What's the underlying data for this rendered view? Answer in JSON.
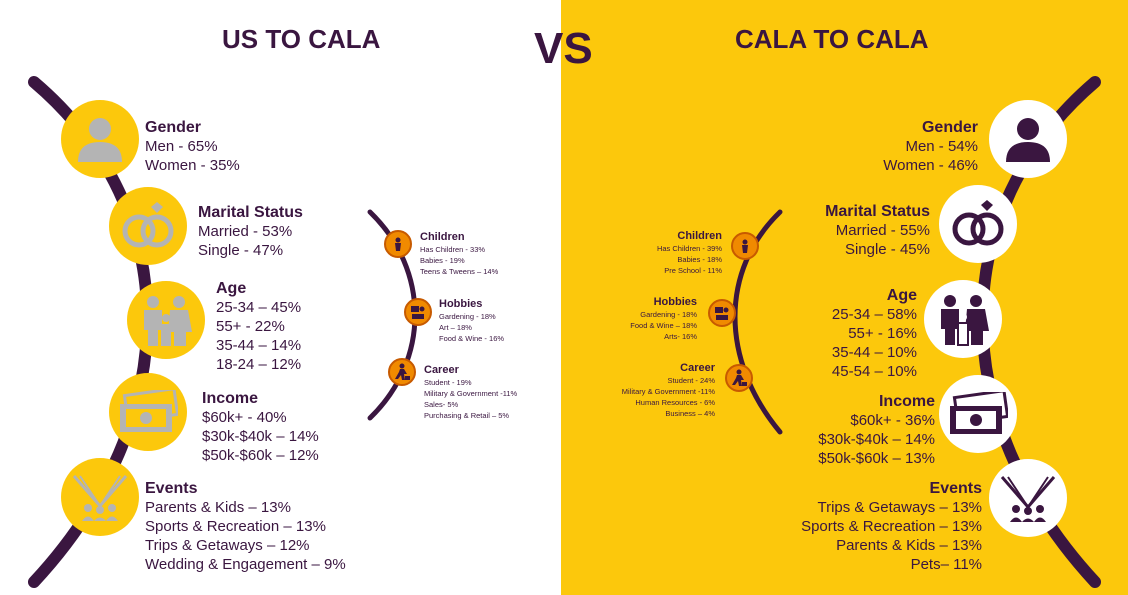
{
  "left": {
    "title": "US TO CALA",
    "blocks": [
      {
        "heading": "Gender",
        "lines": [
          "Men - 65%",
          "Women - 35%"
        ],
        "icon": "person-icon"
      },
      {
        "heading": "Marital Status",
        "lines": [
          "Married - 53%",
          "Single - 47%"
        ],
        "icon": "rings-icon"
      },
      {
        "heading": "Age",
        "lines": [
          "25-34 – 45%",
          "55+ - 22%",
          "35-44 – 14%",
          "18-24 – 12%"
        ],
        "icon": "family-icon"
      },
      {
        "heading": "Income",
        "lines": [
          "$60k+ - 40%",
          "$30k-$40k – 14%",
          "$50k-$60k – 12%"
        ],
        "icon": "money-icon"
      },
      {
        "heading": "Events",
        "lines": [
          "Parents & Kids – 13%",
          "Sports & Recreation – 13%",
          "Trips & Getaways – 12%",
          "Wedding & Engagement – 9%"
        ],
        "icon": "crowd-icon"
      }
    ],
    "small": [
      {
        "heading": "Children",
        "lines": [
          "Has Children - 33%",
          "Babies - 19%",
          "Teens & Tweens – 14%"
        ],
        "icon": "child-icon"
      },
      {
        "heading": "Hobbies",
        "lines": [
          "Gardening - 18%",
          "Art – 18%",
          "Food & Wine - 16%"
        ],
        "icon": "hobbies-icon"
      },
      {
        "heading": "Career",
        "lines": [
          "Student - 19%",
          "Military & Government -11%",
          "Sales- 5%",
          "Purchasing & Retail – 5%"
        ],
        "icon": "career-icon"
      }
    ]
  },
  "vs": "VS",
  "right": {
    "title": "CALA TO CALA",
    "blocks": [
      {
        "heading": "Gender",
        "lines": [
          "Men - 54%",
          "Women - 46%"
        ],
        "icon": "person-icon"
      },
      {
        "heading": "Marital Status",
        "lines": [
          "Married - 55%",
          "Single - 45%"
        ],
        "icon": "rings-icon"
      },
      {
        "heading": "Age",
        "lines": [
          "25-34 – 58%",
          "55+ - 16%",
          "35-44 – 10%",
          "45-54 – 10%"
        ],
        "icon": "family-icon"
      },
      {
        "heading": "Income",
        "lines": [
          "$60k+ - 36%",
          "$30k-$40k – 14%",
          "$50k-$60k – 13%"
        ],
        "icon": "money-icon"
      },
      {
        "heading": "Events",
        "lines": [
          "Trips & Getaways – 13%",
          "Sports & Recreation – 13%",
          "Parents & Kids – 13%",
          "Pets– 11%"
        ],
        "icon": "crowd-icon"
      }
    ],
    "small": [
      {
        "heading": "Children",
        "lines": [
          "Has Children - 39%",
          "Babies - 18%",
          "Pre School - 11%"
        ],
        "icon": "child-icon"
      },
      {
        "heading": "Hobbies",
        "lines": [
          "Gardening - 18%",
          "Food & Wine – 18%",
          "Arts- 16%"
        ],
        "icon": "hobbies-icon"
      },
      {
        "heading": "Career",
        "lines": [
          "Student - 24%",
          "Military & Government -11%",
          "Human Resources - 6%",
          "Business – 4%"
        ],
        "icon": "career-icon"
      }
    ]
  },
  "colors": {
    "purple": "#3a1640",
    "yellow": "#fcc80c",
    "icon_gray": "#b4b4b4",
    "orange": "#f08a00"
  }
}
